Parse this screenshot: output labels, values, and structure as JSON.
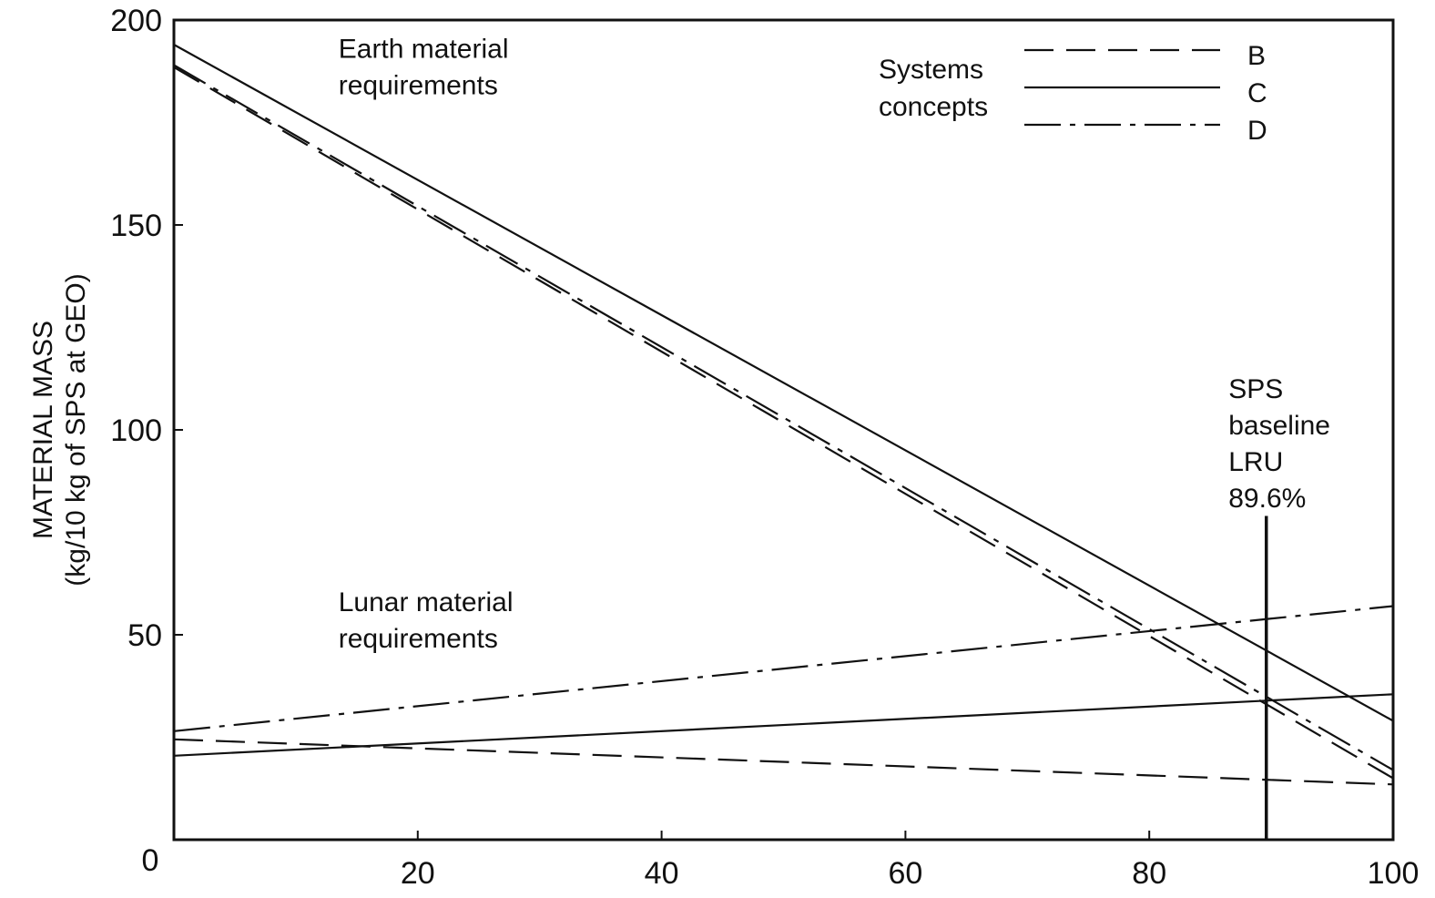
{
  "chart_data": {
    "type": "line",
    "title": "",
    "xlabel": "",
    "ylabel": [
      "MATERIAL MASS",
      "(kg/10 kg of SPS at GEO)"
    ],
    "xlim": [
      0,
      100
    ],
    "ylim": [
      0,
      200
    ],
    "xticks": [
      20,
      40,
      60,
      80,
      100
    ],
    "yticks": [
      50,
      100,
      150,
      200
    ],
    "origin_label": "0",
    "grid": false,
    "legend": {
      "title": [
        "Systems",
        "concepts"
      ],
      "placement": "top-right",
      "entries": [
        {
          "label": "B",
          "style": "dashed"
        },
        {
          "label": "C",
          "style": "solid"
        },
        {
          "label": "D",
          "style": "dashdot"
        }
      ]
    },
    "series": [
      {
        "name": "B",
        "group": "Earth material requirements",
        "style": "dashed",
        "x": [
          0,
          100
        ],
        "y": [
          188.5,
          15
        ]
      },
      {
        "name": "C",
        "group": "Earth material requirements",
        "style": "solid",
        "x": [
          0,
          100
        ],
        "y": [
          194,
          29
        ]
      },
      {
        "name": "D",
        "group": "Earth material requirements",
        "style": "dashdot",
        "x": [
          0,
          100
        ],
        "y": [
          189,
          17
        ]
      },
      {
        "name": "B",
        "group": "Lunar material requirements",
        "style": "dashed",
        "x": [
          0,
          100
        ],
        "y": [
          24.5,
          13.5
        ]
      },
      {
        "name": "C",
        "group": "Lunar material requirements",
        "style": "solid",
        "x": [
          0,
          100
        ],
        "y": [
          20.5,
          35.5
        ]
      },
      {
        "name": "D",
        "group": "Lunar material requirements",
        "style": "dashdot",
        "x": [
          0,
          100
        ],
        "y": [
          26.5,
          57
        ]
      }
    ],
    "annotations": [
      {
        "id": "earth",
        "lines": [
          "Earth material",
          "requirements"
        ],
        "x": 13.5,
        "y": 193
      },
      {
        "id": "lunar",
        "lines": [
          "Lunar material",
          "requirements"
        ],
        "x": 13.5,
        "y": 58
      },
      {
        "id": "baseline",
        "lines": [
          "SPS",
          "baseline",
          "LRU",
          "89.6%"
        ],
        "x": 86.5,
        "y": 110
      }
    ],
    "reference_line": {
      "x": 89.6,
      "y_from": 0,
      "y_to": 79
    }
  }
}
